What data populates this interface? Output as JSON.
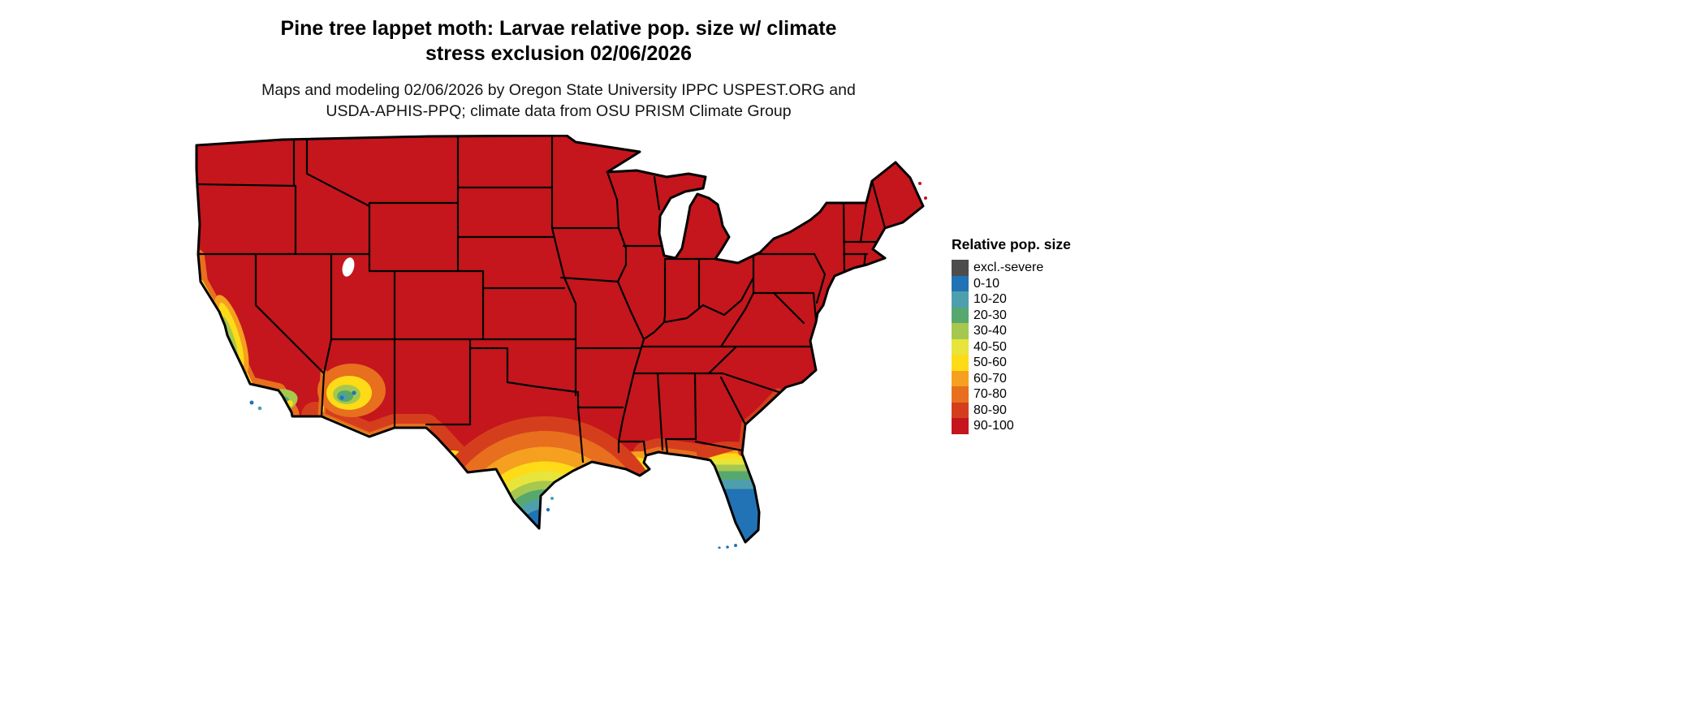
{
  "title": {
    "line1": "Pine tree lappet moth: Larvae relative pop. size w/ climate",
    "line2": "stress exclusion 02/06/2026"
  },
  "subtitle": {
    "line1": "Maps and modeling 02/06/2026 by Oregon State University IPPC USPEST.ORG and",
    "line2": "USDA-APHIS-PPQ; climate data from OSU PRISM Climate Group"
  },
  "legend": {
    "title": "Relative pop. size",
    "items": [
      {
        "label": "excl.-severe",
        "color": "#4d4d4d"
      },
      {
        "label": "0-10",
        "color": "#2273b5"
      },
      {
        "label": "10-20",
        "color": "#4e9fad"
      },
      {
        "label": "20-30",
        "color": "#57a86f"
      },
      {
        "label": "30-40",
        "color": "#a6c84e"
      },
      {
        "label": "40-50",
        "color": "#e7e43c"
      },
      {
        "label": "50-60",
        "color": "#fedb17"
      },
      {
        "label": "60-70",
        "color": "#f6a01f"
      },
      {
        "label": "70-80",
        "color": "#e76f1e"
      },
      {
        "label": "80-90",
        "color": "#d53e1d"
      },
      {
        "label": "90-100",
        "color": "#c4161c"
      }
    ]
  },
  "map": {
    "region": "Continental United States",
    "dominant_class": "90-100",
    "border_color": "#000000",
    "water_color": "#ffffff"
  }
}
